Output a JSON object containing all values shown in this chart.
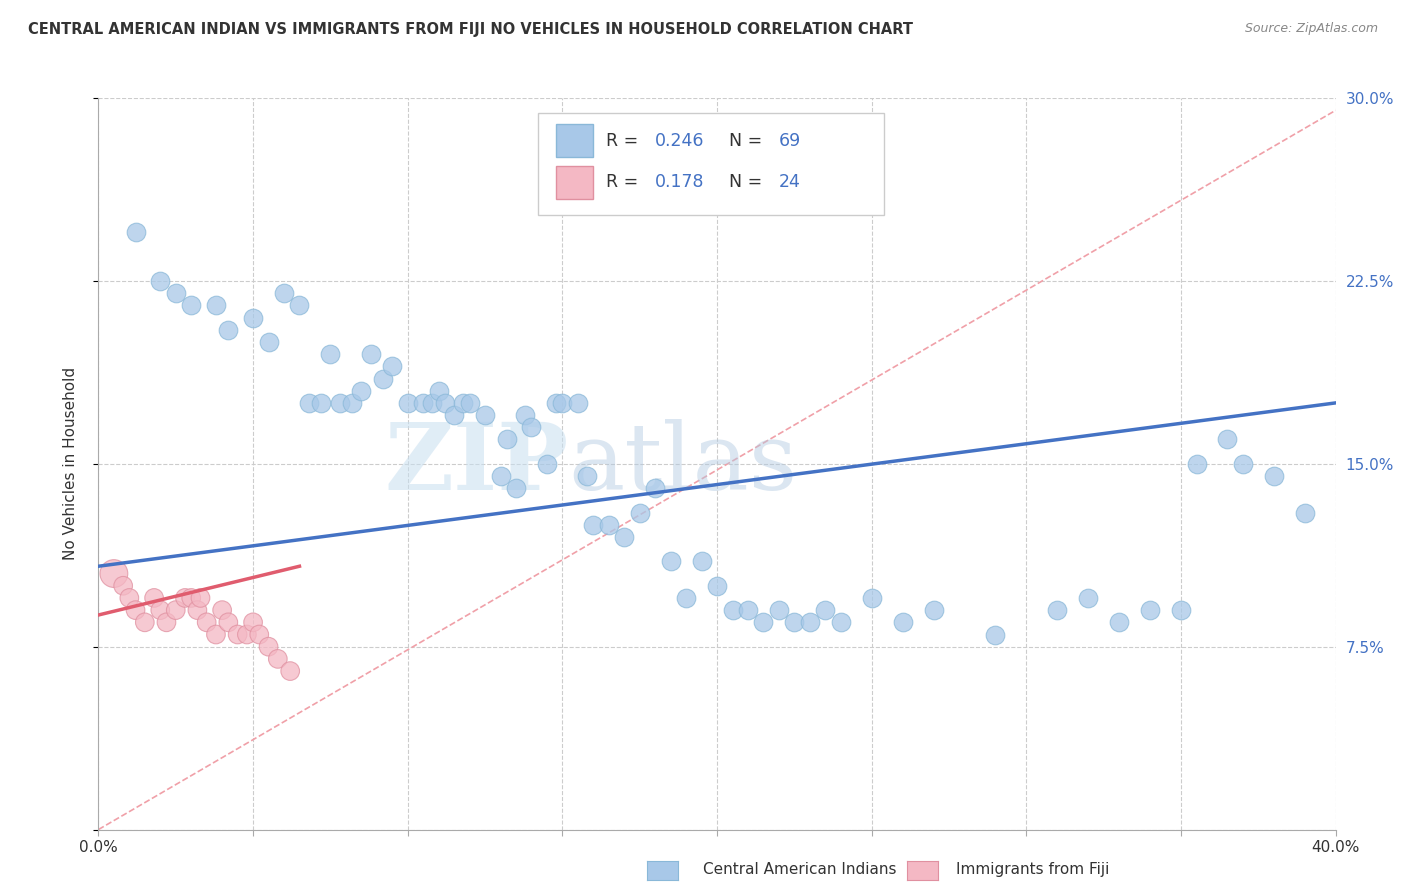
{
  "title": "CENTRAL AMERICAN INDIAN VS IMMIGRANTS FROM FIJI NO VEHICLES IN HOUSEHOLD CORRELATION CHART",
  "source": "Source: ZipAtlas.com",
  "ylabel": "No Vehicles in Household",
  "xlim": [
    0.0,
    0.4
  ],
  "ylim": [
    0.0,
    0.3
  ],
  "xticks": [
    0.0,
    0.05,
    0.1,
    0.15,
    0.2,
    0.25,
    0.3,
    0.35,
    0.4
  ],
  "xticklabels": [
    "0.0%",
    "",
    "",
    "",
    "",
    "",
    "",
    "",
    "40.0%"
  ],
  "yticks_right": [
    0.0,
    0.075,
    0.15,
    0.225,
    0.3
  ],
  "yticklabels_right": [
    "",
    "7.5%",
    "15.0%",
    "22.5%",
    "30.0%"
  ],
  "color_blue": "#a8c8e8",
  "color_pink": "#f4b8c4",
  "color_blue_text": "#4472c4",
  "color_pink_text": "#e05c6e",
  "color_dark_text": "#333333",
  "watermark_zip": "ZIP",
  "watermark_atlas": "atlas",
  "blue_line_x": [
    0.0,
    0.4
  ],
  "blue_line_y": [
    0.108,
    0.175
  ],
  "pink_line_x": [
    0.0,
    0.065
  ],
  "pink_line_y": [
    0.088,
    0.108
  ],
  "trendline_x": [
    0.0,
    0.4
  ],
  "trendline_y": [
    0.0,
    0.295
  ],
  "blue_scatter_x": [
    0.012,
    0.02,
    0.025,
    0.03,
    0.038,
    0.042,
    0.05,
    0.055,
    0.06,
    0.065,
    0.068,
    0.072,
    0.075,
    0.078,
    0.082,
    0.085,
    0.088,
    0.092,
    0.095,
    0.1,
    0.105,
    0.108,
    0.11,
    0.112,
    0.115,
    0.118,
    0.12,
    0.125,
    0.13,
    0.132,
    0.135,
    0.138,
    0.14,
    0.145,
    0.148,
    0.15,
    0.155,
    0.158,
    0.16,
    0.165,
    0.17,
    0.175,
    0.18,
    0.185,
    0.19,
    0.195,
    0.2,
    0.205,
    0.21,
    0.215,
    0.22,
    0.225,
    0.23,
    0.235,
    0.24,
    0.25,
    0.26,
    0.27,
    0.29,
    0.31,
    0.32,
    0.33,
    0.34,
    0.35,
    0.355,
    0.365,
    0.37,
    0.38,
    0.39
  ],
  "blue_scatter_y": [
    0.245,
    0.225,
    0.22,
    0.215,
    0.215,
    0.205,
    0.21,
    0.2,
    0.22,
    0.215,
    0.175,
    0.175,
    0.195,
    0.175,
    0.175,
    0.18,
    0.195,
    0.185,
    0.19,
    0.175,
    0.175,
    0.175,
    0.18,
    0.175,
    0.17,
    0.175,
    0.175,
    0.17,
    0.145,
    0.16,
    0.14,
    0.17,
    0.165,
    0.15,
    0.175,
    0.175,
    0.175,
    0.145,
    0.125,
    0.125,
    0.12,
    0.13,
    0.14,
    0.11,
    0.095,
    0.11,
    0.1,
    0.09,
    0.09,
    0.085,
    0.09,
    0.085,
    0.085,
    0.09,
    0.085,
    0.095,
    0.085,
    0.09,
    0.08,
    0.09,
    0.095,
    0.085,
    0.09,
    0.09,
    0.15,
    0.16,
    0.15,
    0.145,
    0.13
  ],
  "pink_scatter_x": [
    0.005,
    0.008,
    0.01,
    0.012,
    0.015,
    0.018,
    0.02,
    0.022,
    0.025,
    0.028,
    0.03,
    0.032,
    0.033,
    0.035,
    0.038,
    0.04,
    0.042,
    0.045,
    0.048,
    0.05,
    0.052,
    0.055,
    0.058,
    0.062
  ],
  "pink_scatter_y": [
    0.105,
    0.1,
    0.095,
    0.09,
    0.085,
    0.095,
    0.09,
    0.085,
    0.09,
    0.095,
    0.095,
    0.09,
    0.095,
    0.085,
    0.08,
    0.09,
    0.085,
    0.08,
    0.08,
    0.085,
    0.08,
    0.075,
    0.07,
    0.065
  ]
}
